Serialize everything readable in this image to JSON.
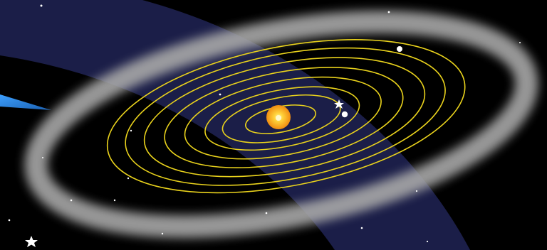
{
  "scene": {
    "colors": {
      "space": "#000000",
      "galactic_band": "#1c1f4a",
      "outer_ring": "#9a9a9a",
      "orbit": "#e8d020",
      "sun_outer": "#f0a010",
      "sun_core": "#fff27a",
      "comet_tail": "#2a7fd4",
      "star": "#ffffff"
    },
    "orbits_count": 8,
    "icons": [
      "sun-icon",
      "planet-icon",
      "star-icon",
      "comet-tail-icon"
    ]
  }
}
